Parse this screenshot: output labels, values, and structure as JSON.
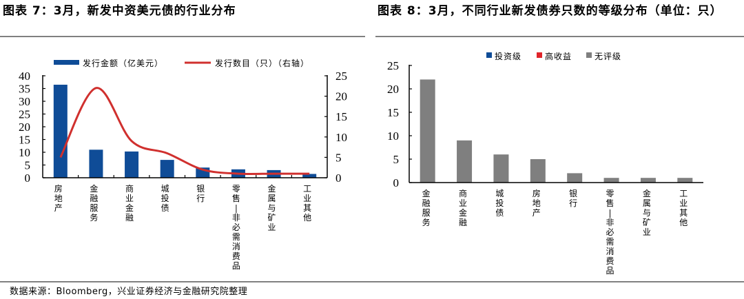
{
  "figure7": {
    "title": "图表 7：3月，新发中资美元债的行业分布"
  },
  "figure8": {
    "title": "图表 8：3月，不同行业新发债券只数的等级分布（单位：只）"
  },
  "source": "数据来源：Bloomberg，兴业证券经济与金融研究院整理",
  "colors": {
    "bar_blue": "#0F4C97",
    "line_red": "#D0302E",
    "high_yield_red": "#E0242A",
    "unrated_gray": "#7F7F7F",
    "rule_gray": "#808080"
  },
  "chart_data": [
    {
      "type": "bar+line",
      "title": "图表 7：3月，新发中资美元债的行业分布",
      "categories": [
        "房地产",
        "金融服务",
        "商业金融",
        "城投债",
        "银行",
        "零售-非必需消费品",
        "金属与矿业",
        "工业其他"
      ],
      "series": [
        {
          "name": "发行金额（亿美元）",
          "type": "bar",
          "axis": "left",
          "color": "#0F4C97",
          "values": [
            36.5,
            11.0,
            10.3,
            7.0,
            4.0,
            3.3,
            3.0,
            1.5
          ]
        },
        {
          "name": "发行数目（只）（右轴）",
          "type": "line",
          "axis": "right",
          "color": "#D0302E",
          "smooth": true,
          "values": [
            5,
            22,
            9,
            6,
            2,
            1,
            1,
            1
          ]
        }
      ],
      "left_axis": {
        "ylim": [
          0,
          40
        ],
        "ticks": [
          "0",
          "5",
          "10",
          "15",
          "20",
          "25",
          "30",
          "35",
          "40"
        ]
      },
      "right_axis": {
        "ylim": [
          0,
          25
        ],
        "ticks": [
          "0",
          "5",
          "10",
          "15",
          "20",
          "25"
        ]
      },
      "legend": [
        {
          "label": "发行金额（亿美元）",
          "shape": "bar"
        },
        {
          "label": "发行数目（只）（右轴）",
          "shape": "line"
        }
      ],
      "legend_position": "top",
      "grid": false
    },
    {
      "type": "bar",
      "title": "图表 8：3月，不同行业新发债券只数的等级分布（单位：只）",
      "categories": [
        "金融服务",
        "商业金融",
        "城投债",
        "房地产",
        "银行",
        "零售-非必需消费品",
        "金属与矿业",
        "工业其他"
      ],
      "series": [
        {
          "name": "投资级",
          "color": "#0F4C97",
          "values": [
            0,
            0,
            0,
            0,
            0,
            0,
            0,
            0
          ]
        },
        {
          "name": "高收益",
          "color": "#E0242A",
          "values": [
            0,
            0,
            0,
            0,
            0,
            0,
            0,
            0
          ]
        },
        {
          "name": "无评级",
          "color": "#7F7F7F",
          "values": [
            22,
            9,
            6,
            5,
            2,
            1,
            1,
            1
          ]
        }
      ],
      "ylim": [
        0,
        25
      ],
      "ticks": [
        "0",
        "5",
        "10",
        "15",
        "20",
        "25"
      ],
      "legend": [
        {
          "label": "投资级"
        },
        {
          "label": "高收益"
        },
        {
          "label": "无评级"
        }
      ],
      "legend_position": "top",
      "grid": false
    }
  ]
}
